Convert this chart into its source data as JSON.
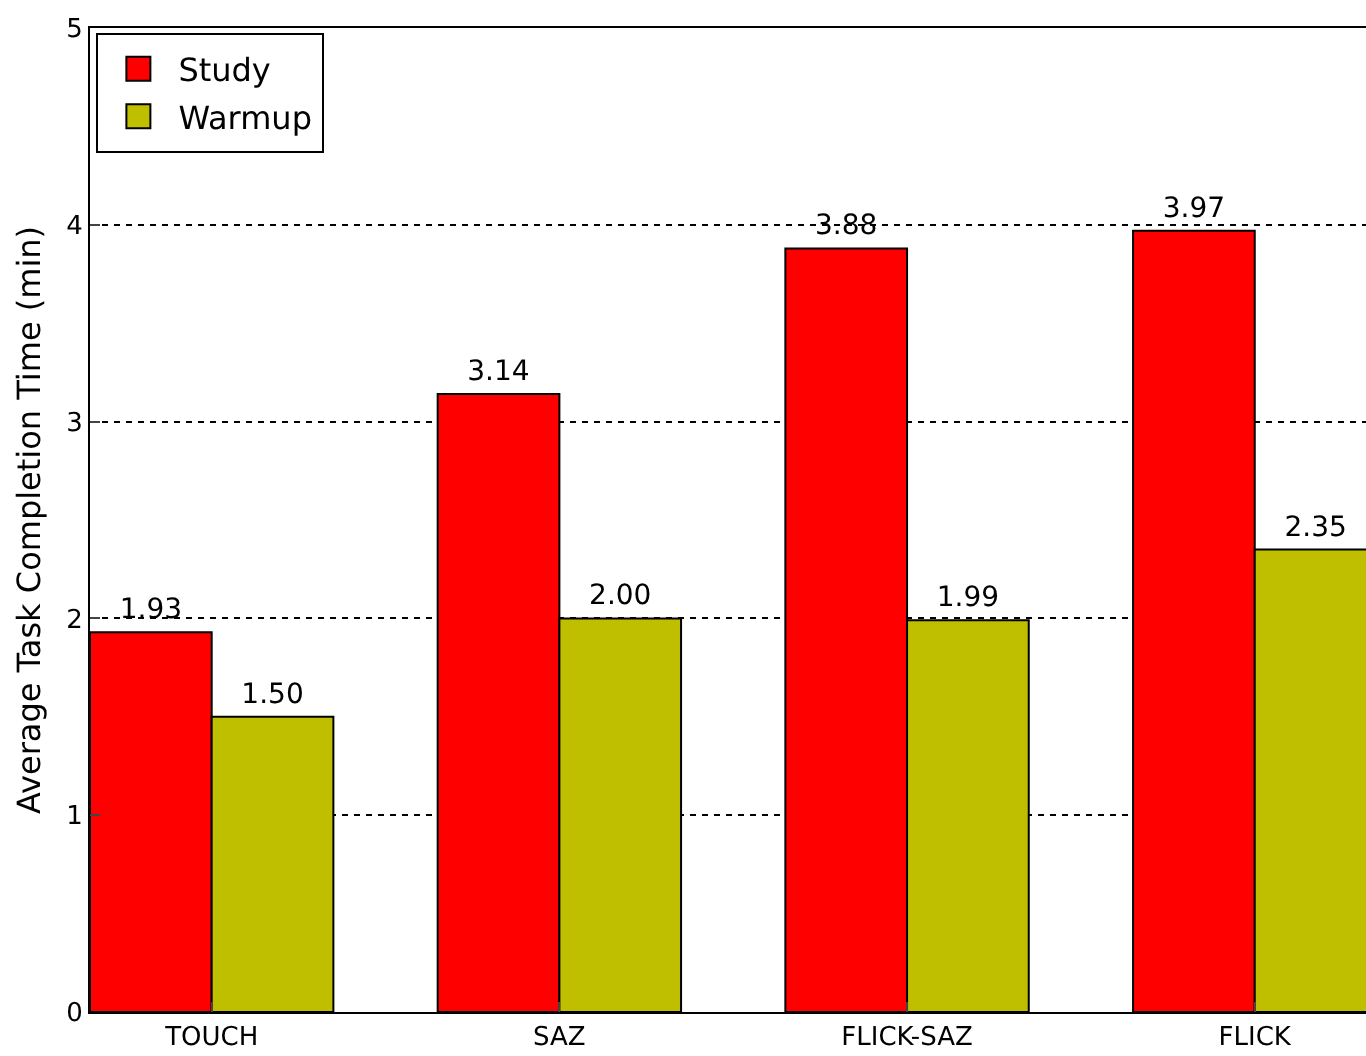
{
  "chart_data": {
    "type": "bar",
    "ylabel": "Average Task Completion Time (min)",
    "categories": [
      "TOUCH",
      "SAZ",
      "FLICK-SAZ",
      "FLICK"
    ],
    "series": [
      {
        "name": "Study",
        "color": "#ff0000",
        "values": [
          1.93,
          3.14,
          3.88,
          3.97
        ],
        "value_labels": [
          "1.93",
          "3.14",
          "3.88",
          "3.97"
        ]
      },
      {
        "name": "Warmup",
        "color": "#bfbf00",
        "values": [
          1.5,
          2.0,
          1.99,
          2.35
        ],
        "value_labels": [
          "1.50",
          "2.00",
          "1.99",
          "2.35"
        ]
      }
    ],
    "ylim": [
      0,
      5
    ],
    "yticks": [
      0,
      1,
      2,
      3,
      4,
      5
    ],
    "grid": "y",
    "legend": "top left"
  }
}
